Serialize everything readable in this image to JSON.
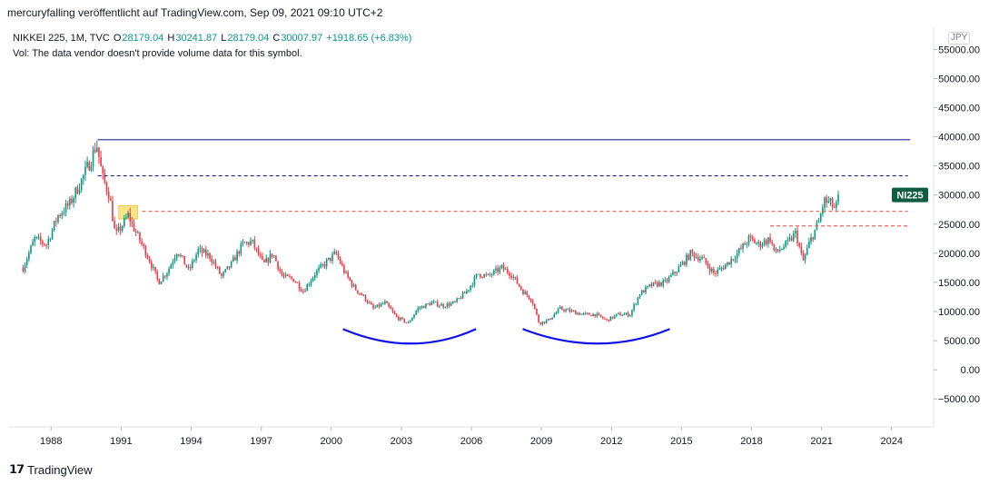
{
  "header": {
    "text": "mercuryfalling veröffentlicht auf TradingView.com, Sep 09, 2021 09:10 UTC+2"
  },
  "legend": {
    "symbol": "NIKKEI 225, 1M, TVC",
    "open_label": "O",
    "open": "28179.04",
    "high_label": "H",
    "high": "30241.87",
    "low_label": "L",
    "low": "28179.04",
    "close_label": "C",
    "close": "30007.97",
    "change": "+1918.65 (+6.83%)",
    "volume_note": "Vol: The data vendor doesn't provide volume data for this symbol."
  },
  "currency": "JPY",
  "price_tag": "NI225",
  "footer": {
    "brand": "TradingView"
  },
  "colors": {
    "up": "#089981",
    "down": "#f23645",
    "resistance": "#1e2a8c",
    "arc": "#1010e8",
    "support": "#f0605a",
    "highlight": "#f7e37a",
    "tag_bg": "#105c40"
  },
  "chart_data": {
    "type": "candlestick",
    "x_ticks": [
      "1988",
      "1991",
      "1994",
      "1997",
      "2000",
      "2003",
      "2006",
      "2009",
      "2012",
      "2015",
      "2018",
      "2021",
      "2024"
    ],
    "y_ticks": [
      "55000.00",
      "50000.00",
      "45000.00",
      "40000.00",
      "35000.00",
      "30000.00",
      "25000.00",
      "20000.00",
      "15000.00",
      "10000.00",
      "5000.00",
      "0.00",
      "−5000.00"
    ],
    "xlim": [
      1986.2,
      2025.8
    ],
    "ylim": [
      -9800,
      58800
    ],
    "price_series": [
      [
        1986.8,
        17500
      ],
      [
        1987.3,
        22500
      ],
      [
        1987.8,
        21500
      ],
      [
        1988.3,
        26500
      ],
      [
        1988.8,
        28500
      ],
      [
        1989.3,
        32500
      ],
      [
        1989.7,
        36000
      ],
      [
        1989.95,
        38900
      ],
      [
        1990.2,
        33000
      ],
      [
        1990.5,
        30000
      ],
      [
        1990.75,
        23000
      ],
      [
        1991.0,
        24500
      ],
      [
        1991.3,
        26500
      ],
      [
        1991.7,
        23000
      ],
      [
        1992.2,
        19000
      ],
      [
        1992.6,
        15000
      ],
      [
        1993.0,
        17000
      ],
      [
        1993.4,
        20500
      ],
      [
        1993.9,
        17000
      ],
      [
        1994.3,
        20500
      ],
      [
        1994.8,
        19500
      ],
      [
        1995.3,
        16000
      ],
      [
        1995.7,
        18000
      ],
      [
        1996.2,
        21500
      ],
      [
        1996.6,
        22000
      ],
      [
        1997.1,
        18000
      ],
      [
        1997.5,
        20000
      ],
      [
        1997.9,
        16000
      ],
      [
        1998.4,
        15500
      ],
      [
        1998.8,
        13500
      ],
      [
        1999.3,
        16500
      ],
      [
        1999.8,
        18500
      ],
      [
        2000.2,
        20000
      ],
      [
        2000.6,
        16500
      ],
      [
        2001.0,
        14000
      ],
      [
        2001.4,
        12500
      ],
      [
        2001.8,
        10500
      ],
      [
        2002.3,
        11500
      ],
      [
        2002.8,
        9000
      ],
      [
        2003.3,
        8000
      ],
      [
        2003.7,
        10500
      ],
      [
        2004.3,
        11500
      ],
      [
        2004.8,
        11000
      ],
      [
        2005.3,
        11500
      ],
      [
        2005.8,
        13500
      ],
      [
        2006.3,
        16500
      ],
      [
        2006.7,
        16000
      ],
      [
        2007.3,
        17500
      ],
      [
        2007.7,
        16500
      ],
      [
        2008.2,
        13500
      ],
      [
        2008.6,
        12000
      ],
      [
        2008.9,
        8000
      ],
      [
        2009.3,
        8500
      ],
      [
        2009.8,
        10500
      ],
      [
        2010.3,
        10000
      ],
      [
        2010.8,
        9500
      ],
      [
        2011.3,
        9500
      ],
      [
        2011.8,
        8500
      ],
      [
        2012.3,
        9500
      ],
      [
        2012.8,
        9500
      ],
      [
        2013.2,
        13000
      ],
      [
        2013.7,
        14500
      ],
      [
        2014.3,
        15000
      ],
      [
        2014.9,
        17500
      ],
      [
        2015.4,
        20000
      ],
      [
        2015.9,
        19000
      ],
      [
        2016.4,
        16500
      ],
      [
        2016.9,
        18000
      ],
      [
        2017.4,
        20000
      ],
      [
        2017.9,
        22500
      ],
      [
        2018.3,
        21500
      ],
      [
        2018.8,
        22500
      ],
      [
        2019.0,
        20000
      ],
      [
        2019.5,
        21500
      ],
      [
        2019.9,
        23500
      ],
      [
        2020.2,
        18500
      ],
      [
        2020.5,
        22000
      ],
      [
        2020.9,
        25500
      ],
      [
        2021.1,
        29000
      ],
      [
        2021.4,
        28500
      ],
      [
        2021.6,
        27500
      ],
      [
        2021.75,
        30000
      ]
    ],
    "lines": [
      {
        "name": "resistance-solid",
        "style": "solid",
        "y": 39500,
        "x_start": 1990.0,
        "x_end": 2024.8
      },
      {
        "name": "resistance-dashed",
        "style": "dashed",
        "y": 33300,
        "x_start": 1990.0,
        "x_end": 2024.7
      },
      {
        "name": "support-dashed-upper",
        "style": "dashed",
        "y": 27200,
        "x_start": 1991.9,
        "x_end": 2024.7
      },
      {
        "name": "support-dashed-lower",
        "style": "dashed",
        "y": 24700,
        "x_start": 2018.8,
        "x_end": 2024.7
      }
    ],
    "arcs": [
      {
        "name": "arc-2000s",
        "x_start": 2000.5,
        "x_mid": 2003.4,
        "x_end": 2006.2,
        "y_ends": 7000,
        "y_mid": 4500
      },
      {
        "name": "arc-2010s",
        "x_start": 2008.2,
        "x_mid": 2011.4,
        "x_end": 2014.5,
        "y_ends": 7000,
        "y_mid": 4500
      }
    ],
    "highlight_box": {
      "x_start": 1990.9,
      "x_end": 1991.7,
      "y_low": 25900,
      "y_high": 28200
    },
    "last_price": 30007.97
  }
}
